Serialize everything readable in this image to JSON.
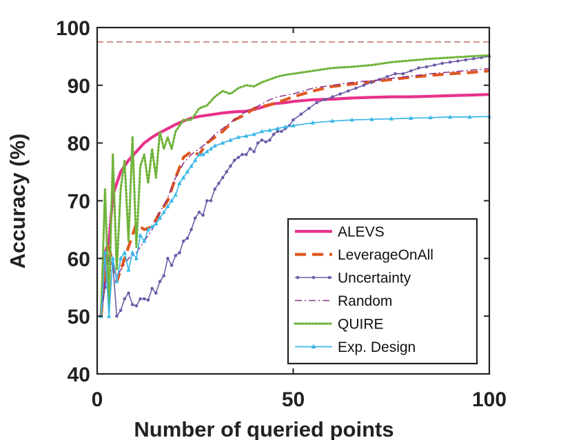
{
  "chart_data": {
    "type": "line",
    "title": "",
    "xlabel": "Number of queried points",
    "ylabel": "Accuracy (%)",
    "xlim": [
      0,
      100
    ],
    "ylim": [
      40,
      100
    ],
    "xticks": [
      0,
      50,
      100
    ],
    "yticks": [
      40,
      50,
      60,
      70,
      80,
      90,
      100
    ],
    "grid": false,
    "legend_position": "bottom-right",
    "reference_line": {
      "y": 97.5,
      "style": "dashed",
      "color": "#b23b3b"
    },
    "series": [
      {
        "name": "ALEVS",
        "color": "#e8318a",
        "style": "solid",
        "width": 4.2,
        "marker": "none",
        "x": [
          1,
          2,
          3,
          4,
          5,
          6,
          7,
          8,
          10,
          12,
          14,
          16,
          18,
          20,
          22,
          24,
          26,
          28,
          30,
          32,
          35,
          38,
          40,
          42,
          45,
          48,
          50,
          55,
          60,
          65,
          70,
          75,
          80,
          85,
          90,
          95,
          100
        ],
        "y": [
          50,
          61,
          63,
          71,
          73,
          75,
          76,
          77,
          78.5,
          80,
          81,
          81.8,
          82.5,
          83.2,
          83.8,
          84.3,
          84.6,
          84.8,
          85,
          85.2,
          85.4,
          85.5,
          85.8,
          86.2,
          86.8,
          87,
          87.2,
          87.5,
          87.6,
          87.8,
          87.9,
          88,
          88,
          88.1,
          88.2,
          88.3,
          88.4
        ]
      },
      {
        "name": "LeverageOnAll",
        "color": "#e0561f",
        "style": "dashed",
        "width": 4.2,
        "marker": "none",
        "x": [
          1,
          2,
          3,
          4,
          5,
          6,
          8,
          10,
          12,
          14,
          16,
          18,
          20,
          22,
          24,
          26,
          28,
          30,
          32,
          35,
          38,
          40,
          45,
          50,
          55,
          60,
          65,
          70,
          75,
          80,
          85,
          90,
          95,
          100
        ],
        "y": [
          50,
          58,
          62,
          59,
          56,
          58,
          62,
          66,
          65,
          65.5,
          68,
          70,
          74,
          77.5,
          78.5,
          78,
          80,
          81,
          82,
          84,
          85,
          86,
          86.8,
          88,
          89,
          89.8,
          90.2,
          90.6,
          91,
          91.4,
          91.7,
          92,
          92.2,
          92.5
        ]
      },
      {
        "name": "Uncertainty",
        "color": "#6b5ba8",
        "style": "solid",
        "width": 1.6,
        "marker": "circle",
        "x": [
          1,
          2,
          3,
          4,
          5,
          6,
          7,
          8,
          9,
          10,
          11,
          12,
          13,
          14,
          15,
          16,
          17,
          18,
          19,
          20,
          21,
          22,
          23,
          24,
          25,
          26,
          27,
          28,
          29,
          30,
          31,
          32,
          33,
          34,
          35,
          36,
          37,
          38,
          39,
          40,
          41,
          42,
          43,
          44,
          45,
          46,
          47,
          48,
          49,
          50,
          52,
          54,
          56,
          58,
          60,
          62,
          64,
          66,
          68,
          70,
          72,
          74,
          76,
          78,
          80,
          82,
          84,
          86,
          88,
          90,
          92,
          94,
          96,
          98,
          100
        ],
        "y": [
          50,
          55,
          60,
          59,
          50,
          51,
          53,
          54,
          52,
          51.8,
          53,
          53,
          52.8,
          54.8,
          54,
          56,
          57,
          60,
          58.8,
          60.5,
          61,
          63,
          63.5,
          65,
          67,
          68,
          67.5,
          70,
          70,
          72,
          73,
          74,
          75,
          76,
          77,
          77.5,
          78,
          78,
          79,
          78.5,
          80,
          80.5,
          80.2,
          80.5,
          81.5,
          82,
          82,
          82.5,
          83,
          84,
          85,
          86,
          87,
          87.5,
          88,
          88.5,
          89,
          89.5,
          90,
          90.5,
          91,
          91.5,
          92,
          92,
          92.5,
          93,
          93.2,
          93.5,
          93.8,
          94,
          94.2,
          94.4,
          94.6,
          94.8,
          95
        ]
      },
      {
        "name": "Random",
        "color": "#8a2a8a",
        "style": "dashdot",
        "width": 1.5,
        "marker": "none",
        "x": [
          1,
          2,
          3,
          4,
          5,
          6,
          8,
          10,
          12,
          14,
          16,
          18,
          20,
          22,
          24,
          26,
          28,
          30,
          32,
          35,
          38,
          40,
          42,
          44,
          46,
          50,
          55,
          60,
          65,
          70,
          75,
          80,
          85,
          90,
          95,
          100
        ],
        "y": [
          50,
          56,
          57,
          59,
          57,
          58,
          60,
          61,
          63,
          65,
          68,
          70.5,
          74,
          76.5,
          78,
          79,
          80,
          81.5,
          82.5,
          84,
          85.5,
          86,
          86.8,
          87.5,
          88,
          88.5,
          89.5,
          90,
          90.5,
          90.8,
          91.2,
          91.6,
          92,
          92.3,
          92.6,
          92.9
        ]
      },
      {
        "name": "QUIRE",
        "color": "#6fb33b",
        "style": "dotted",
        "width": 3.2,
        "marker": "none",
        "x": [
          1,
          2,
          3,
          4,
          5,
          6,
          7,
          8,
          9,
          10,
          11,
          12,
          13,
          14,
          15,
          16,
          17,
          18,
          19,
          20,
          22,
          24,
          26,
          28,
          30,
          32,
          34,
          36,
          38,
          40,
          42,
          44,
          46,
          48,
          50,
          55,
          60,
          65,
          70,
          75,
          80,
          85,
          90,
          95,
          100
        ],
        "y": [
          50,
          72,
          52,
          78,
          58,
          72,
          77,
          63,
          81,
          62,
          76,
          78,
          73,
          79,
          74,
          82,
          79,
          81,
          79,
          82,
          84,
          84,
          86,
          86.5,
          88,
          89,
          88.5,
          89.5,
          90,
          89.8,
          90.5,
          91,
          91.5,
          91.8,
          92,
          92.5,
          93,
          93.2,
          93.5,
          94,
          94.3,
          94.6,
          94.8,
          95,
          95.2
        ]
      },
      {
        "name": "Exp. Design",
        "color": "#3ab7e8",
        "style": "solid",
        "width": 1.7,
        "marker": "triangle",
        "x": [
          1,
          2,
          3,
          4,
          5,
          6,
          7,
          8,
          9,
          10,
          11,
          12,
          13,
          14,
          15,
          16,
          17,
          18,
          19,
          20,
          21,
          22,
          23,
          24,
          25,
          26,
          27,
          28,
          29,
          30,
          32,
          34,
          36,
          38,
          40,
          42,
          44,
          46,
          48,
          50,
          55,
          60,
          65,
          70,
          75,
          80,
          85,
          90,
          95,
          100
        ],
        "y": [
          50,
          61,
          50,
          60,
          56,
          60,
          61,
          58,
          61,
          60,
          64,
          63,
          65,
          65.5,
          66,
          67,
          68,
          69,
          70,
          71,
          73,
          74,
          75,
          76,
          77,
          78,
          78,
          78.5,
          79,
          79.5,
          80,
          80.5,
          81,
          81.2,
          81.5,
          82,
          82.2,
          82.5,
          82.8,
          83,
          83.5,
          83.8,
          84,
          84.1,
          84.2,
          84.3,
          84.4,
          84.5,
          84.5,
          84.6
        ]
      }
    ]
  }
}
